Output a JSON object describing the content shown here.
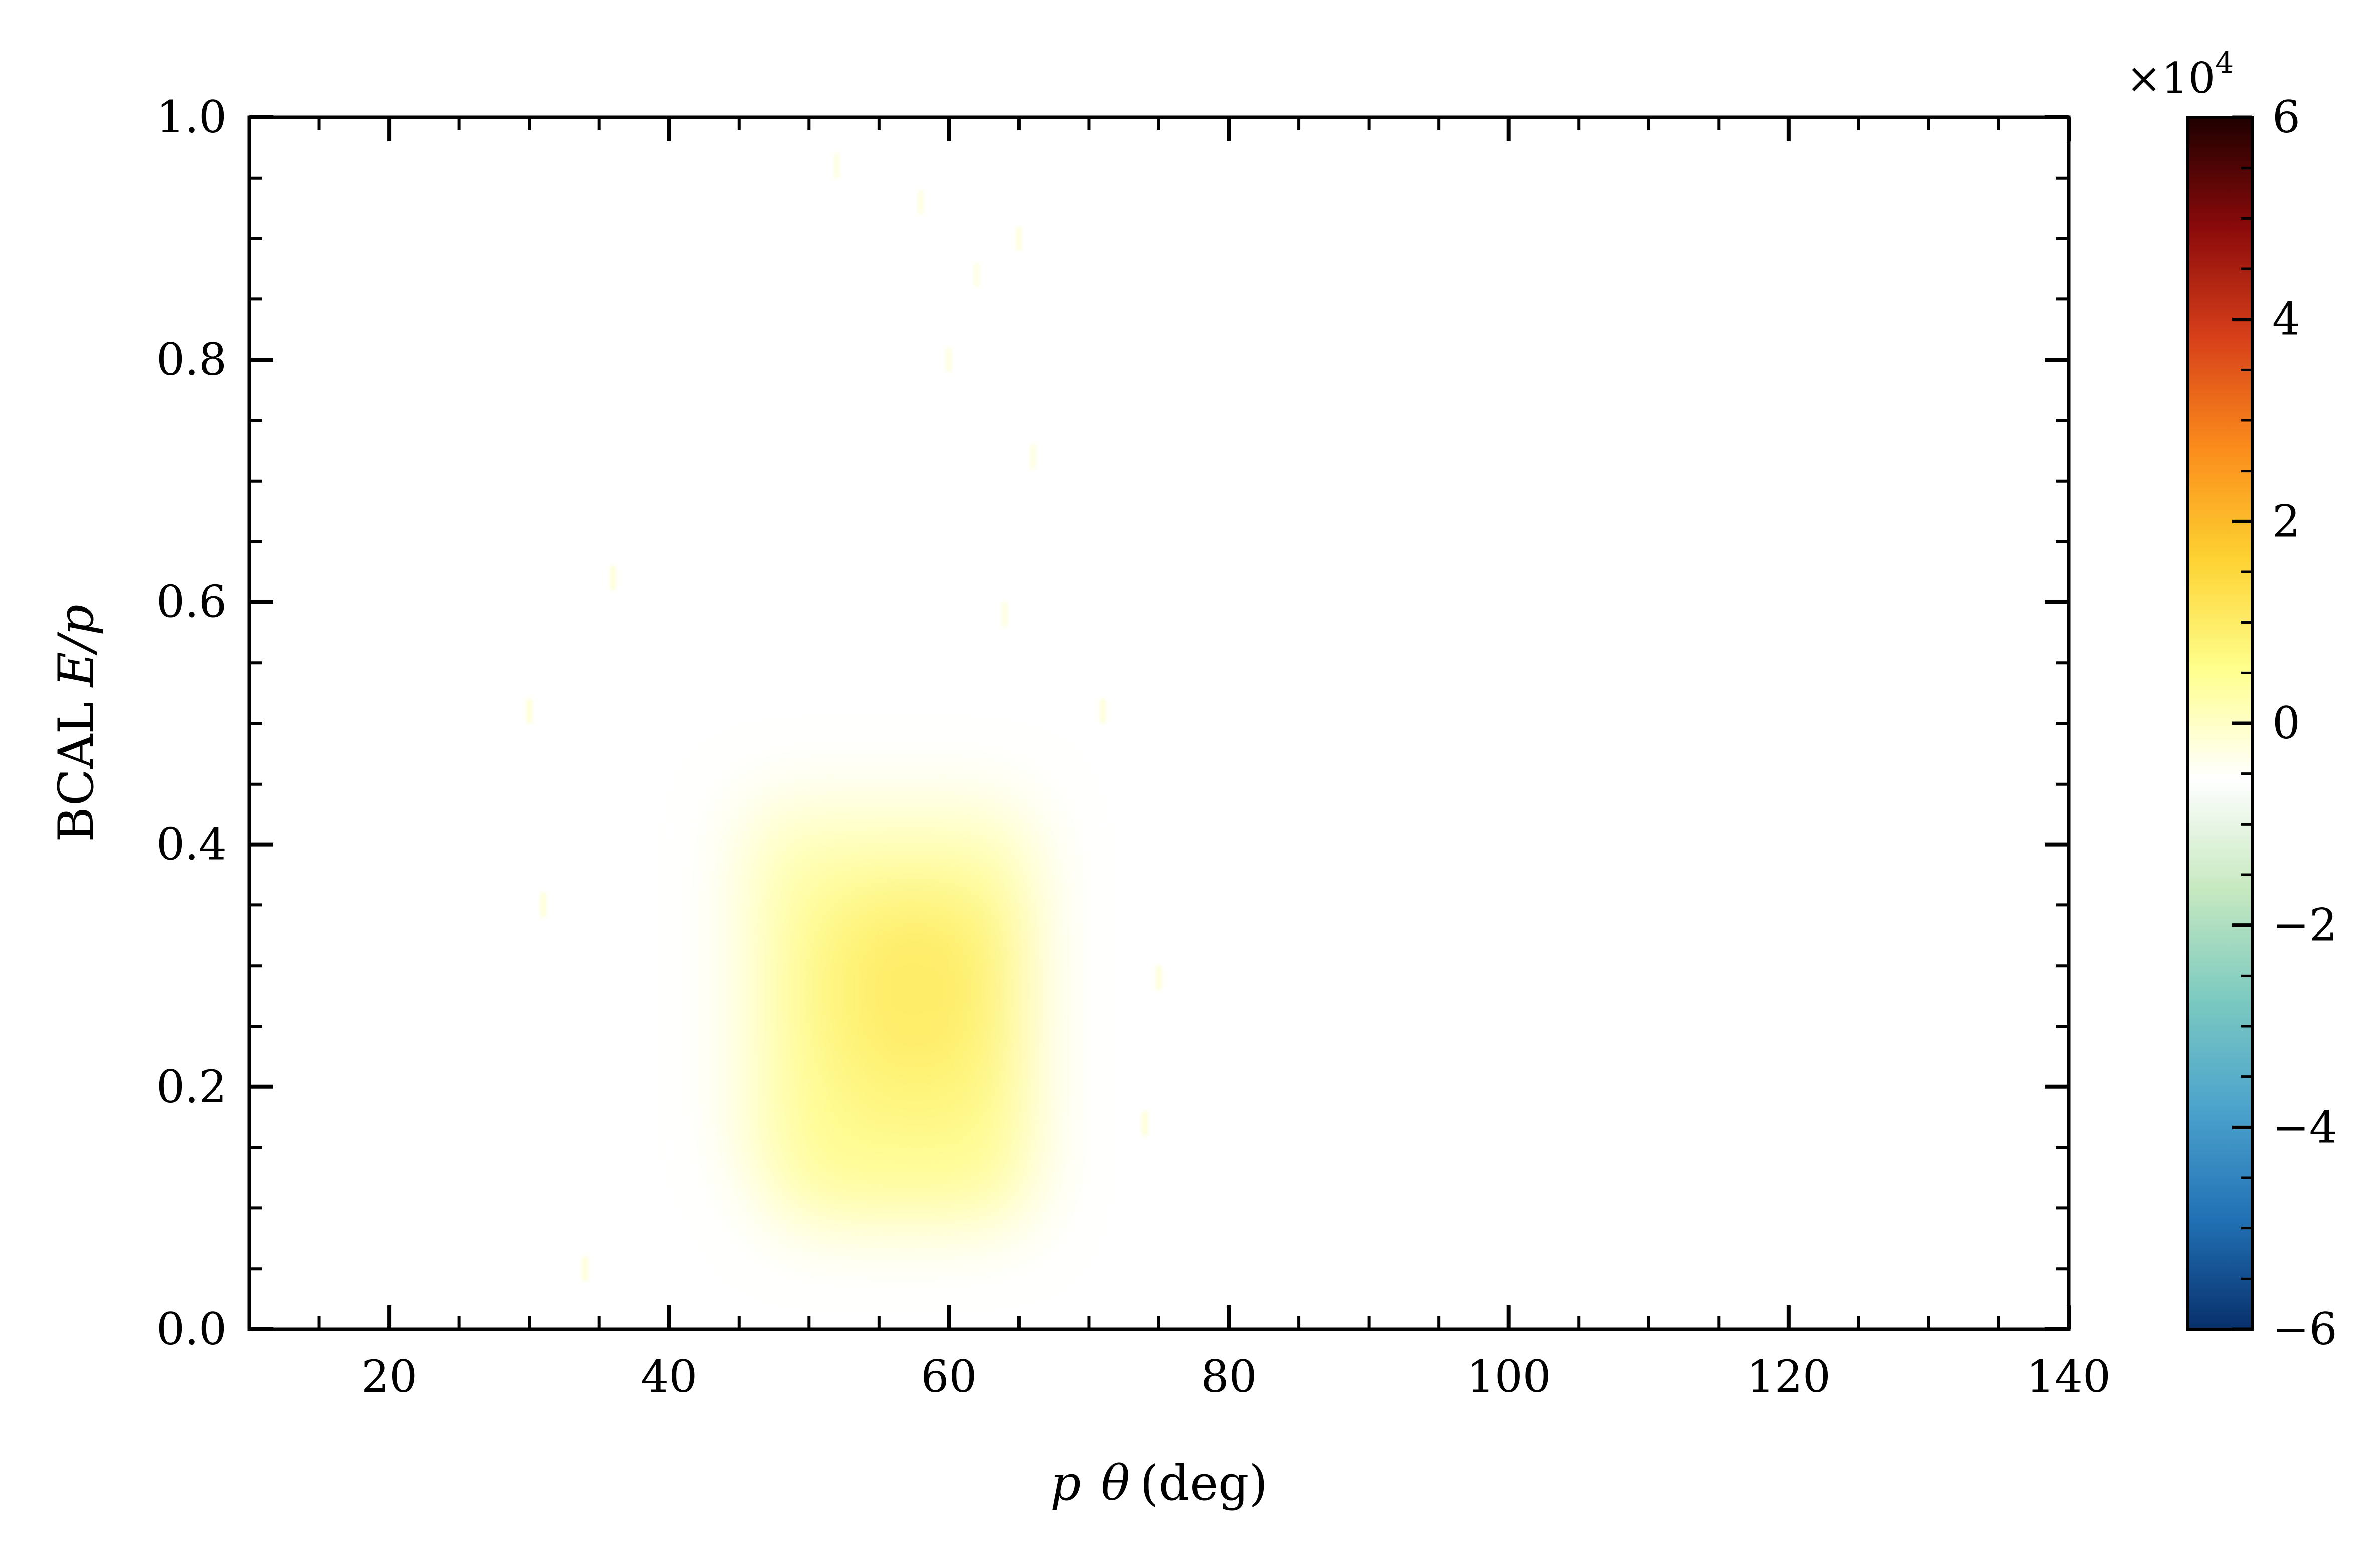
{
  "chart_data": {
    "type": "heatmap",
    "title": "",
    "xlabel": "p θ (deg)",
    "ylabel": "BCAL E/p",
    "xlabel_parts": {
      "var": "p",
      "sym": "θ",
      "unit": "(deg)"
    },
    "ylabel_parts": {
      "text": "BCAL ",
      "var": "E/p"
    },
    "xlim": [
      10,
      140
    ],
    "ylim": [
      0.0,
      1.0
    ],
    "x_ticks": [
      20,
      40,
      60,
      80,
      100,
      120,
      140
    ],
    "y_ticks": [
      0.0,
      0.2,
      0.4,
      0.6,
      0.8,
      1.0
    ],
    "x_tick_labels": [
      "20",
      "40",
      "60",
      "80",
      "100",
      "120",
      "140"
    ],
    "y_tick_labels": [
      "0.0",
      "0.2",
      "0.4",
      "0.6",
      "0.8",
      "1.0"
    ],
    "colorbar": {
      "range": [
        -6,
        6
      ],
      "ticks": [
        -6,
        -4,
        -2,
        0,
        2,
        4,
        6
      ],
      "tick_labels": [
        "−6",
        "−4",
        "−2",
        "0",
        "2",
        "4",
        "6"
      ],
      "multiplier": "×10",
      "multiplier_exp": "4",
      "colormap": [
        "#08306b",
        "#2171b5",
        "#4ba3cc",
        "#7ccac0",
        "#c7e9c0",
        "#ffffff",
        "#ffff8c",
        "#fdd231",
        "#fb8c1b",
        "#d7401a",
        "#8b0a0a",
        "#1e0000"
      ]
    },
    "peak": {
      "x": 57,
      "y": 0.28,
      "value": 1.0
    },
    "blob": [
      {
        "x": [
          45,
          66
        ],
        "y": [
          0.12,
          0.44
        ],
        "value": 0.35
      },
      {
        "x": [
          47,
          66
        ],
        "y": [
          0.08,
          0.4
        ],
        "value": 0.5
      },
      {
        "x": [
          49,
          65
        ],
        "y": [
          0.1,
          0.37
        ],
        "value": 0.7
      },
      {
        "x": [
          52,
          64
        ],
        "y": [
          0.17,
          0.36
        ],
        "value": 0.9
      },
      {
        "x": [
          54,
          62
        ],
        "y": [
          0.22,
          0.34
        ],
        "value": 1.2
      }
    ],
    "speckles": [
      {
        "x": 52,
        "y": 0.96,
        "value": -0.1
      },
      {
        "x": 58,
        "y": 0.93,
        "value": -0.1
      },
      {
        "x": 62,
        "y": 0.87,
        "value": -0.15
      },
      {
        "x": 65,
        "y": 0.9,
        "value": -0.1
      },
      {
        "x": 60,
        "y": 0.8,
        "value": -0.1
      },
      {
        "x": 66,
        "y": 0.72,
        "value": -0.1
      },
      {
        "x": 64,
        "y": 0.59,
        "value": -0.1
      },
      {
        "x": 36,
        "y": 0.62,
        "value": 0.05
      },
      {
        "x": 30,
        "y": 0.51,
        "value": 0.05
      },
      {
        "x": 71,
        "y": 0.51,
        "value": 0.05
      },
      {
        "x": 31,
        "y": 0.35,
        "value": 0.05
      },
      {
        "x": 75,
        "y": 0.29,
        "value": 0.05
      },
      {
        "x": 74,
        "y": 0.17,
        "value": 0.05
      },
      {
        "x": 34,
        "y": 0.05,
        "value": 0.05
      }
    ]
  }
}
